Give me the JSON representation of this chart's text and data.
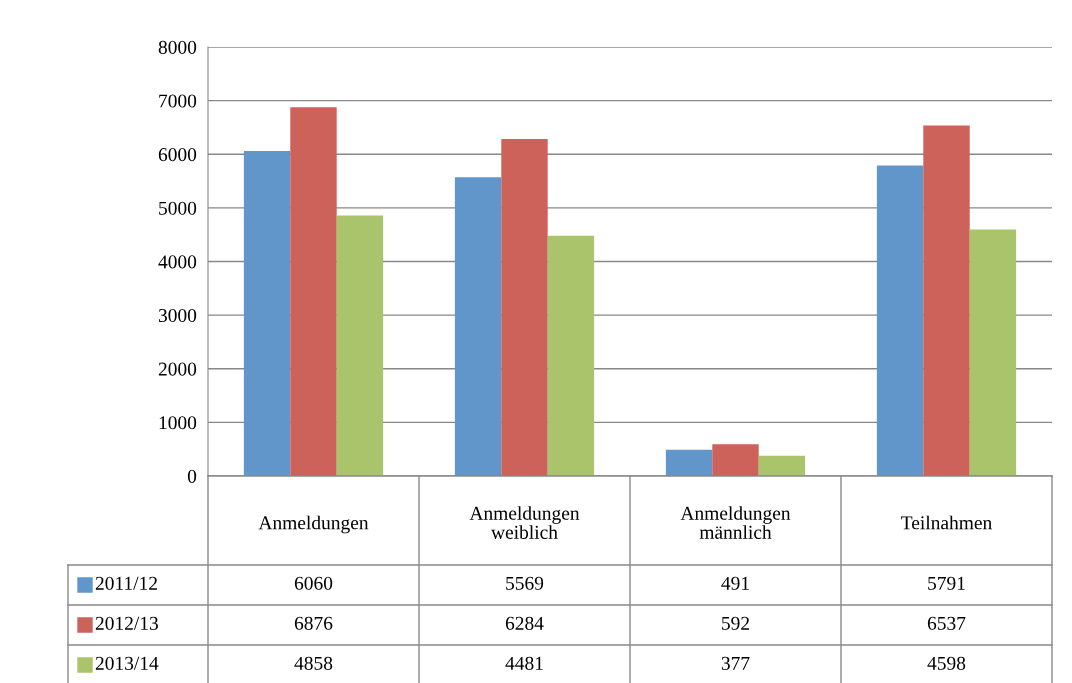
{
  "chart_data": {
    "type": "bar",
    "categories": [
      "Anmeldungen",
      "Anmeldungen\nweiblich",
      "Anmeldungen\nmännlich",
      "Teilnahmen"
    ],
    "series": [
      {
        "name": "2011/12",
        "color": "#6196cb",
        "values": [
          6060,
          5569,
          491,
          5791
        ]
      },
      {
        "name": "2012/13",
        "color": "#cd625b",
        "values": [
          6876,
          6284,
          592,
          6537
        ]
      },
      {
        "name": "2013/14",
        "color": "#a9c46a",
        "values": [
          4858,
          4481,
          377,
          4598
        ]
      }
    ],
    "ylim": [
      0,
      8000
    ],
    "yticks": [
      0,
      1000,
      2000,
      3000,
      4000,
      5000,
      6000,
      7000,
      8000
    ],
    "grid": "y",
    "legend": "bottom",
    "data_labels": true
  }
}
